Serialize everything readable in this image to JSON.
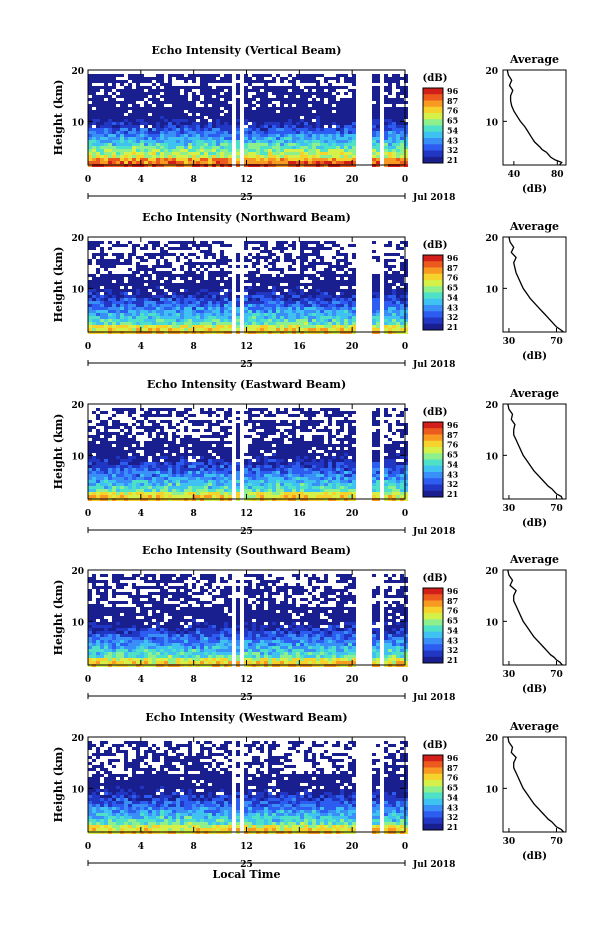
{
  "chart_data": [
    {
      "type": "heatmap",
      "title": "Echo Intensity (Vertical Beam)",
      "ylabel": "Height (km)",
      "ylim": [
        1.5,
        20
      ],
      "yticks": [
        10,
        20
      ],
      "xlim": [
        0,
        24
      ],
      "xticks": [
        "0",
        "4",
        "8",
        "12",
        "16",
        "20",
        "0"
      ],
      "date_label": "25",
      "month_label": "Jul 2018",
      "data_gaps_hours": [
        [
          5.8,
          6.0
        ],
        [
          10.8,
          11.1
        ],
        [
          11.5,
          11.7
        ],
        [
          20.0,
          21.5
        ],
        [
          22.1,
          22.3
        ]
      ],
      "colorbar": {
        "label": "(dB)",
        "ticks": [
          "96",
          "87",
          "76",
          "65",
          "54",
          "43",
          "32",
          "21"
        ]
      },
      "profile": {
        "title": "Average",
        "xlabel": "(dB)",
        "xticks": [
          "40",
          "80"
        ],
        "xlim": [
          30,
          88
        ],
        "yticks": [
          "10",
          "20"
        ],
        "heights_km": [
          1.5,
          2,
          2.5,
          3,
          3.5,
          4,
          4.5,
          5,
          6,
          7,
          8,
          9,
          10,
          11,
          12,
          13,
          14,
          15,
          16,
          17,
          18,
          19,
          20
        ],
        "values_db": [
          82,
          84,
          78,
          74,
          72,
          70,
          66,
          64,
          59,
          56,
          53,
          50,
          46,
          43,
          40,
          38,
          37,
          37,
          39,
          36,
          38,
          35,
          34
        ]
      }
    },
    {
      "type": "heatmap",
      "title": "Echo Intensity (Northward Beam)",
      "ylabel": "Height (km)",
      "ylim": [
        1.5,
        20
      ],
      "yticks": [
        10,
        20
      ],
      "xlim": [
        0,
        24
      ],
      "xticks": [
        "0",
        "4",
        "8",
        "12",
        "16",
        "20",
        "0"
      ],
      "date_label": "25",
      "month_label": "Jul 2018",
      "data_gaps_hours": [
        [
          5.8,
          6.0
        ],
        [
          10.8,
          11.1
        ],
        [
          11.5,
          11.7
        ],
        [
          20.0,
          21.5
        ],
        [
          22.1,
          22.3
        ]
      ],
      "colorbar": {
        "label": "(dB)",
        "ticks": [
          "96",
          "87",
          "76",
          "65",
          "54",
          "43",
          "32",
          "21"
        ]
      },
      "profile": {
        "title": "Average",
        "xlabel": "(dB)",
        "xticks": [
          "30",
          "70"
        ],
        "xlim": [
          25,
          78
        ],
        "yticks": [
          "10",
          "20"
        ],
        "heights_km": [
          1.5,
          2,
          2.5,
          3,
          3.5,
          4,
          4.5,
          5,
          6,
          7,
          8,
          9,
          10,
          11,
          12,
          13,
          14,
          15,
          16,
          17,
          18,
          19,
          20
        ],
        "values_db": [
          76,
          73,
          70,
          68,
          66,
          64,
          62,
          60,
          56,
          52,
          48,
          45,
          42,
          40,
          38,
          36,
          35,
          34,
          36,
          32,
          34,
          31,
          30
        ]
      }
    },
    {
      "type": "heatmap",
      "title": "Echo Intensity (Eastward Beam)",
      "ylabel": "Height (km)",
      "ylim": [
        1.5,
        20
      ],
      "yticks": [
        10,
        20
      ],
      "xlim": [
        0,
        24
      ],
      "xticks": [
        "0",
        "4",
        "8",
        "12",
        "16",
        "20",
        "0"
      ],
      "date_label": "25",
      "month_label": "Jul 2018",
      "data_gaps_hours": [
        [
          5.8,
          6.0
        ],
        [
          10.8,
          11.1
        ],
        [
          11.5,
          11.7
        ],
        [
          20.0,
          21.5
        ],
        [
          22.1,
          22.3
        ]
      ],
      "colorbar": {
        "label": "(dB)",
        "ticks": [
          "96",
          "87",
          "76",
          "65",
          "54",
          "43",
          "32",
          "21"
        ]
      },
      "profile": {
        "title": "Average",
        "xlabel": "(dB)",
        "xticks": [
          "30",
          "70"
        ],
        "xlim": [
          25,
          78
        ],
        "yticks": [
          "10",
          "20"
        ],
        "heights_km": [
          1.5,
          2,
          2.5,
          3,
          3.5,
          4,
          4.5,
          5,
          6,
          7,
          8,
          9,
          10,
          11,
          12,
          13,
          14,
          15,
          16,
          17,
          18,
          19,
          20
        ],
        "values_db": [
          75,
          74,
          70,
          68,
          66,
          63,
          61,
          59,
          55,
          51,
          48,
          45,
          42,
          40,
          38,
          36,
          34,
          34,
          35,
          32,
          33,
          30,
          29
        ]
      }
    },
    {
      "type": "heatmap",
      "title": "Echo Intensity (Southward Beam)",
      "ylabel": "Height (km)",
      "ylim": [
        1.5,
        20
      ],
      "yticks": [
        10,
        20
      ],
      "xlim": [
        0,
        24
      ],
      "xticks": [
        "0",
        "4",
        "8",
        "12",
        "16",
        "20",
        "0"
      ],
      "date_label": "25",
      "month_label": "Jul 2018",
      "data_gaps_hours": [
        [
          5.8,
          6.0
        ],
        [
          10.8,
          11.1
        ],
        [
          11.5,
          11.7
        ],
        [
          20.0,
          21.5
        ],
        [
          22.1,
          22.3
        ]
      ],
      "colorbar": {
        "label": "(dB)",
        "ticks": [
          "96",
          "87",
          "76",
          "65",
          "54",
          "43",
          "32",
          "21"
        ]
      },
      "profile": {
        "title": "Average",
        "xlabel": "(dB)",
        "xticks": [
          "30",
          "70"
        ],
        "xlim": [
          25,
          78
        ],
        "yticks": [
          "10",
          "20"
        ],
        "heights_km": [
          1.5,
          2,
          2.5,
          3,
          3.5,
          4,
          4.5,
          5,
          6,
          7,
          8,
          9,
          10,
          11,
          12,
          13,
          14,
          15,
          16,
          17,
          18,
          19,
          20
        ],
        "values_db": [
          75,
          73,
          70,
          68,
          65,
          63,
          61,
          59,
          55,
          51,
          48,
          45,
          42,
          40,
          38,
          36,
          34,
          34,
          36,
          31,
          33,
          30,
          29
        ]
      }
    },
    {
      "type": "heatmap",
      "title": "Echo Intensity (Westward Beam)",
      "ylabel": "Height (km)",
      "ylim": [
        1.5,
        20
      ],
      "yticks": [
        10,
        20
      ],
      "xlim": [
        0,
        24
      ],
      "xticks": [
        "0",
        "4",
        "8",
        "12",
        "16",
        "20",
        "0"
      ],
      "date_label": "25",
      "month_label": "Jul 2018",
      "xlabel": "Local Time",
      "data_gaps_hours": [
        [
          5.8,
          6.0
        ],
        [
          10.8,
          11.1
        ],
        [
          11.5,
          11.7
        ],
        [
          20.0,
          21.5
        ],
        [
          22.1,
          22.3
        ]
      ],
      "colorbar": {
        "label": "(dB)",
        "ticks": [
          "96",
          "87",
          "76",
          "65",
          "54",
          "43",
          "32",
          "21"
        ]
      },
      "profile": {
        "title": "Average",
        "xlabel": "(dB)",
        "xticks": [
          "30",
          "70"
        ],
        "xlim": [
          25,
          78
        ],
        "yticks": [
          "10",
          "20"
        ],
        "heights_km": [
          1.5,
          2,
          2.5,
          3,
          3.5,
          4,
          4.5,
          5,
          6,
          7,
          8,
          9,
          10,
          11,
          12,
          13,
          14,
          15,
          16,
          17,
          18,
          19,
          20
        ],
        "values_db": [
          76,
          74,
          70,
          68,
          66,
          63,
          61,
          59,
          55,
          51,
          48,
          45,
          42,
          40,
          38,
          36,
          34,
          34,
          36,
          32,
          33,
          30,
          29
        ]
      }
    }
  ]
}
